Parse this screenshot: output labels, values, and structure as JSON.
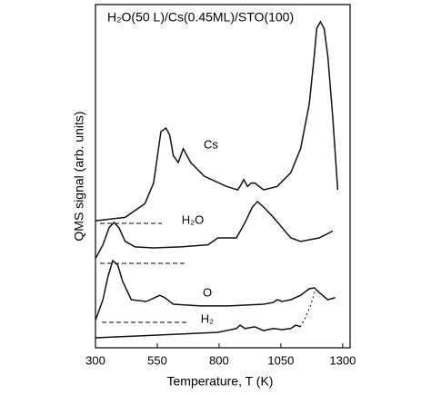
{
  "chart_data": {
    "type": "line",
    "title": "H₂O(50 L)/Cs(0.45ML)/STO(100)",
    "x_label": "Temperature, T (K)",
    "y_label": "QMS signal (arb. units)",
    "xlim": [
      300,
      1330
    ],
    "ylim": [
      0,
      100
    ],
    "xticks": [
      300,
      550,
      800,
      1050,
      1300
    ],
    "series": [
      {
        "name": "Cs",
        "color": "#111111",
        "x": [
          300,
          420,
          500,
          535,
          555,
          565,
          585,
          600,
          615,
          635,
          655,
          685,
          740,
          830,
          875,
          885,
          900,
          915,
          930,
          945,
          980,
          1035,
          1090,
          1130,
          1165,
          1185,
          1195,
          1210,
          1225,
          1240,
          1260,
          1280
        ],
        "values": [
          37,
          38,
          42,
          48,
          58,
          63,
          64,
          62,
          56,
          54,
          58,
          54,
          50,
          47,
          46,
          47,
          49,
          47,
          48,
          48,
          46,
          47,
          51,
          58,
          71,
          85,
          93,
          95,
          93,
          85,
          67,
          46
        ]
      },
      {
        "name": "H₂O",
        "color": "#111111",
        "x": [
          300,
          330,
          355,
          375,
          395,
          420,
          460,
          535,
          645,
          755,
          795,
          870,
          905,
          935,
          955,
          980,
          1020,
          1055,
          1090,
          1130,
          1205,
          1260
        ],
        "values": [
          26,
          30,
          35,
          36.5,
          35,
          31,
          29.4,
          29.1,
          29.4,
          30,
          32,
          32,
          36.5,
          41,
          42.6,
          41,
          38,
          35,
          32,
          31,
          32,
          34
        ]
      },
      {
        "name": "O",
        "color": "#111111",
        "x": [
          300,
          330,
          350,
          370,
          390,
          410,
          445,
          505,
          540,
          560,
          580,
          615,
          725,
          835,
          980,
          1020,
          1035,
          1055,
          1090,
          1130,
          1165,
          1185,
          1205,
          1240,
          1270
        ],
        "values": [
          8,
          14,
          20.6,
          25.4,
          24.1,
          19.3,
          14,
          13.5,
          14.6,
          15.3,
          14.6,
          12.7,
          12.2,
          12.2,
          12.7,
          13.2,
          14,
          13.5,
          14,
          15.3,
          17.2,
          17.5,
          16.1,
          14,
          14.6
        ]
      },
      {
        "name": "H₂",
        "color": "#111111",
        "x": [
          300,
          460,
          645,
          795,
          870,
          885,
          905,
          945,
          980,
          1020,
          1055,
          1090,
          1110,
          1130
        ],
        "values": [
          2.9,
          3.4,
          4,
          4.5,
          5.6,
          6.6,
          5.6,
          6.1,
          5,
          5.6,
          5.3,
          5.6,
          6.6,
          6.1
        ]
      }
    ]
  }
}
